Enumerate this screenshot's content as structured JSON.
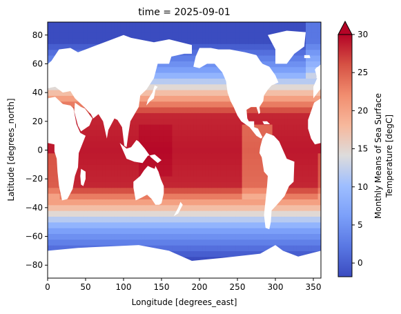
{
  "chart_data": {
    "type": "heatmap",
    "title": "time = 2025-09-01",
    "xlabel": "Longitude [degrees_east]",
    "ylabel": "Latitude [degrees_north]",
    "xlim": [
      0,
      360
    ],
    "ylim": [
      -89,
      89
    ],
    "x_ticks": [
      0,
      50,
      100,
      150,
      200,
      250,
      300,
      350
    ],
    "y_ticks": [
      -80,
      -60,
      -40,
      -20,
      0,
      20,
      40,
      60,
      80
    ],
    "grid": false,
    "colormap": "coolwarm",
    "colorbar": {
      "label_line1": "Monthly Means of Sea Surface",
      "label_line2": "Temperature [degC]",
      "range": [
        -1.8,
        30
      ],
      "ticks": [
        0,
        5,
        10,
        15,
        20,
        25,
        30
      ],
      "extend": "max"
    },
    "z_description": "Sea surface temperature: warmest (about 28-30 degC) in the tropics, decreasing toward the poles to about -1.8 degC; land areas are masked (white)."
  },
  "colors": {
    "cold": "#3b4cc0",
    "neutral": "#dddcdc",
    "warm": "#b40426",
    "land": "#ffffff"
  }
}
